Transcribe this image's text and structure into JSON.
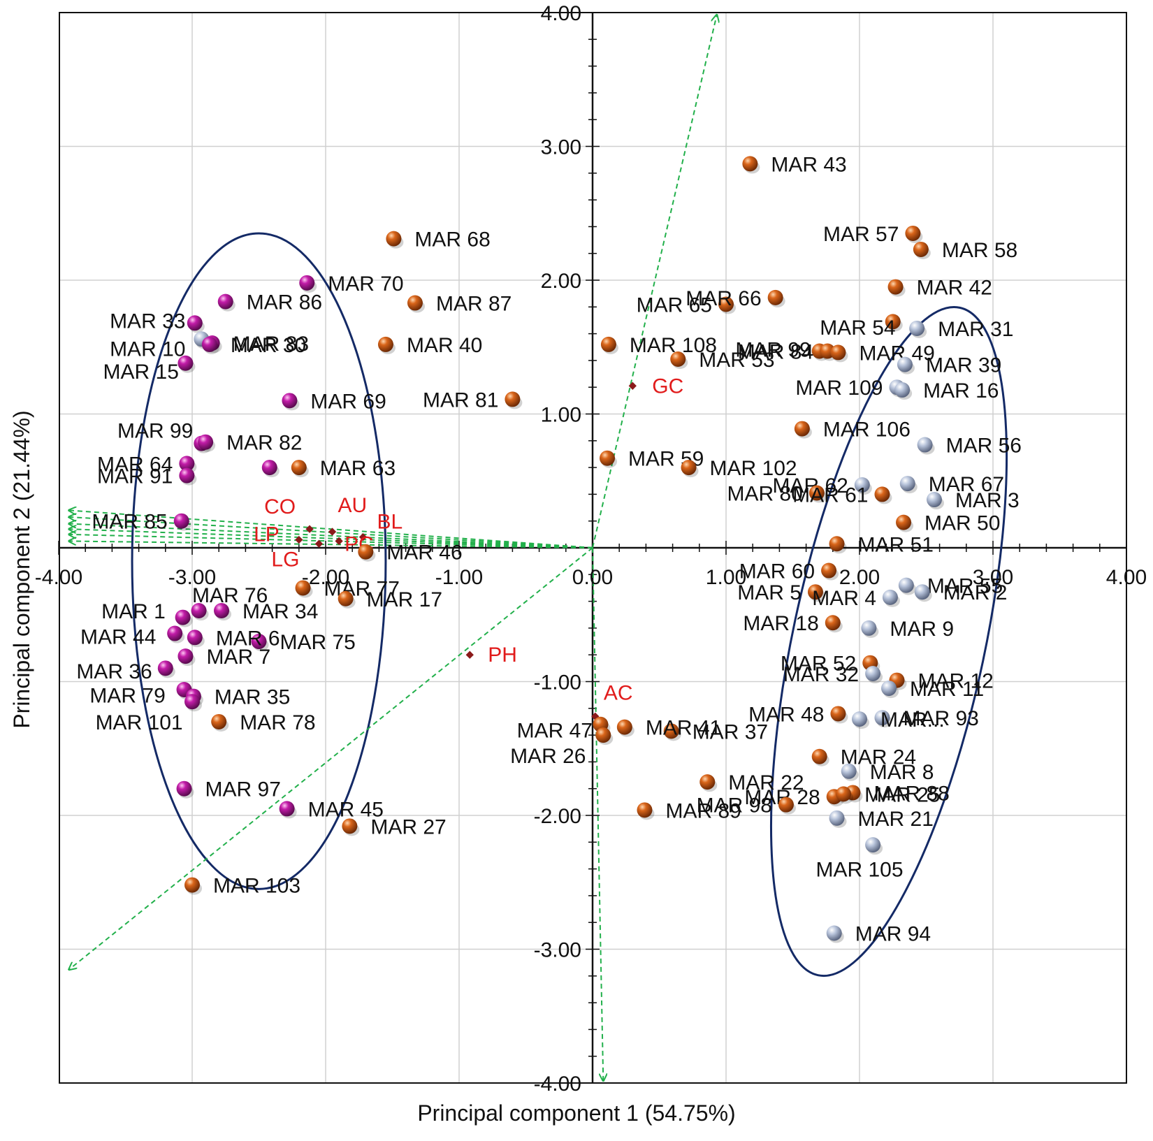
{
  "chart_data": {
    "type": "scatter",
    "title": "",
    "xlabel": "Principal component 1 (54.75%)",
    "ylabel": "Principal component 2 (21.44%)",
    "xlim": [
      -4,
      4
    ],
    "ylim": [
      -4,
      4
    ],
    "xticks": [
      "-4.00",
      "-3.00",
      "-2.00",
      "-1.00",
      "0.00",
      "1.00",
      "2.00",
      "3.00",
      "4.00"
    ],
    "yticks": [
      "-4.00",
      "-3.00",
      "-2.00",
      "-1.00",
      "0.00",
      "1.00",
      "2.00",
      "3.00",
      "4.00"
    ],
    "grid": true,
    "colors": {
      "magenta_group": "#b5179e",
      "orange_group": "#c4520f",
      "grey_group": "#9aa8c4",
      "loading_arrow": "#22b04b",
      "variable_label": "#e11b1b",
      "ellipse": "#142a66"
    },
    "points": [
      {
        "label": "MAR 43",
        "x": 1.18,
        "y": 2.87,
        "group": "orange"
      },
      {
        "label": "MAR 57",
        "x": 2.4,
        "y": 2.35,
        "group": "orange"
      },
      {
        "label": "MAR 58",
        "x": 2.46,
        "y": 2.23,
        "group": "orange"
      },
      {
        "label": "MAR 65",
        "x": 1.0,
        "y": 1.82,
        "group": "orange"
      },
      {
        "label": "MAR 66",
        "x": 1.37,
        "y": 1.87,
        "group": "orange"
      },
      {
        "label": "MAR 42",
        "x": 2.27,
        "y": 1.95,
        "group": "orange"
      },
      {
        "label": "MAR 99",
        "x": 1.7,
        "y": 1.47,
        "group": "orange"
      },
      {
        "label": "MAR 54",
        "x": 2.25,
        "y": 1.69,
        "group": "orange"
      },
      {
        "label": "MAR 31",
        "x": 2.43,
        "y": 1.64,
        "group": "grey"
      },
      {
        "label": "MAR 108",
        "x": 0.12,
        "y": 1.52,
        "group": "orange"
      },
      {
        "label": "MAR 84",
        "x": 1.76,
        "y": 1.47,
        "group": "orange"
      },
      {
        "label": "MAR 49",
        "x": 1.84,
        "y": 1.46,
        "group": "orange"
      },
      {
        "label": "MAR 53",
        "x": 0.64,
        "y": 1.41,
        "group": "orange"
      },
      {
        "label": "MAR 39",
        "x": 2.34,
        "y": 1.37,
        "group": "grey"
      },
      {
        "label": "MAR 109",
        "x": 2.28,
        "y": 1.2,
        "group": "grey"
      },
      {
        "label": "MAR 16",
        "x": 2.32,
        "y": 1.18,
        "group": "grey"
      },
      {
        "label": "MAR 81",
        "x": -0.6,
        "y": 1.11,
        "group": "orange"
      },
      {
        "label": "MAR 106",
        "x": 1.57,
        "y": 0.89,
        "group": "orange"
      },
      {
        "label": "MAR 56",
        "x": 2.49,
        "y": 0.77,
        "group": "grey"
      },
      {
        "label": "MAR 59",
        "x": 0.11,
        "y": 0.67,
        "group": "orange"
      },
      {
        "label": "MAR 102",
        "x": 0.72,
        "y": 0.6,
        "group": "orange"
      },
      {
        "label": "MAR 62",
        "x": 2.02,
        "y": 0.47,
        "group": "grey"
      },
      {
        "label": "MAR 67",
        "x": 2.36,
        "y": 0.48,
        "group": "grey"
      },
      {
        "label": "MAR 80",
        "x": 1.68,
        "y": 0.41,
        "group": "orange"
      },
      {
        "label": "MAR 61",
        "x": 2.17,
        "y": 0.4,
        "group": "orange"
      },
      {
        "label": "MAR 3",
        "x": 2.56,
        "y": 0.36,
        "group": "grey"
      },
      {
        "label": "MAR 50",
        "x": 2.33,
        "y": 0.19,
        "group": "orange"
      },
      {
        "label": "MAR 51",
        "x": 1.83,
        "y": 0.03,
        "group": "orange"
      },
      {
        "label": "MAR 60",
        "x": 1.77,
        "y": -0.17,
        "group": "orange"
      },
      {
        "label": "MAR 55",
        "x": 2.35,
        "y": -0.28,
        "group": "grey"
      },
      {
        "label": "MAR 5",
        "x": 1.67,
        "y": -0.33,
        "group": "orange"
      },
      {
        "label": "MAR 4",
        "x": 2.23,
        "y": -0.37,
        "group": "grey"
      },
      {
        "label": "MAR 2",
        "x": 2.47,
        "y": -0.33,
        "group": "grey"
      },
      {
        "label": "MAR 18",
        "x": 1.8,
        "y": -0.56,
        "group": "orange"
      },
      {
        "label": "MAR 9",
        "x": 2.07,
        "y": -0.6,
        "group": "grey"
      },
      {
        "label": "MAR 52",
        "x": 2.08,
        "y": -0.86,
        "group": "orange"
      },
      {
        "label": "MAR 12",
        "x": 2.28,
        "y": -0.99,
        "group": "orange"
      },
      {
        "label": "MAR 32",
        "x": 2.1,
        "y": -0.94,
        "group": "grey"
      },
      {
        "label": "MAR 11",
        "x": 2.22,
        "y": -1.05,
        "group": "grey"
      },
      {
        "label": "MAR 48",
        "x": 1.84,
        "y": -1.24,
        "group": "orange"
      },
      {
        "label": "MAR 93",
        "x": 2.17,
        "y": -1.27,
        "group": "grey"
      },
      {
        "label": "MAR...",
        "x": 2.0,
        "y": -1.28,
        "group": "grey"
      },
      {
        "label": "MAR 37",
        "x": 0.59,
        "y": -1.37,
        "group": "orange"
      },
      {
        "label": "MAR 47",
        "x": 0.06,
        "y": -1.32,
        "group": "orange"
      },
      {
        "label": "MAR 26",
        "x": 0.08,
        "y": -1.4,
        "group": "orange"
      },
      {
        "label": "MAR 41",
        "x": 0.24,
        "y": -1.34,
        "group": "orange"
      },
      {
        "label": "MAR 24",
        "x": 1.7,
        "y": -1.56,
        "group": "orange"
      },
      {
        "label": "MAR 8",
        "x": 1.92,
        "y": -1.67,
        "group": "grey"
      },
      {
        "label": "MAR 22",
        "x": 0.86,
        "y": -1.75,
        "group": "orange"
      },
      {
        "label": "MAR 88",
        "x": 1.95,
        "y": -1.83,
        "group": "orange"
      },
      {
        "label": "MAR 28",
        "x": 1.81,
        "y": -1.86,
        "group": "orange"
      },
      {
        "label": "MAR 25",
        "x": 1.88,
        "y": -1.84,
        "group": "orange"
      },
      {
        "label": "MAR 89",
        "x": 0.39,
        "y": -1.96,
        "group": "orange"
      },
      {
        "label": "MAR 98",
        "x": 1.45,
        "y": -1.92,
        "group": "orange"
      },
      {
        "label": "MAR 21",
        "x": 1.83,
        "y": -2.02,
        "group": "grey"
      },
      {
        "label": "MAR 105",
        "x": 2.1,
        "y": -2.22,
        "group": "grey"
      },
      {
        "label": "MAR 94",
        "x": 1.81,
        "y": -2.88,
        "group": "grey"
      },
      {
        "label": "MAR 68",
        "x": -1.49,
        "y": 2.31,
        "group": "orange"
      },
      {
        "label": "MAR 70",
        "x": -2.14,
        "y": 1.98,
        "group": "magenta"
      },
      {
        "label": "MAR 87",
        "x": -1.33,
        "y": 1.83,
        "group": "orange"
      },
      {
        "label": "MAR 86",
        "x": -2.75,
        "y": 1.84,
        "group": "magenta"
      },
      {
        "label": "MAR 33",
        "x": -2.98,
        "y": 1.68,
        "group": "magenta"
      },
      {
        "label": "MAR 10",
        "x": -2.93,
        "y": 1.56,
        "group": "grey"
      },
      {
        "label": "MAR 83",
        "x": -2.85,
        "y": 1.53,
        "group": "magenta"
      },
      {
        "label": "MAR 40",
        "x": -1.55,
        "y": 1.52,
        "group": "orange"
      },
      {
        "label": "MAR 15",
        "x": -3.05,
        "y": 1.38,
        "group": "magenta"
      },
      {
        "label": "MAR 30",
        "x": -2.87,
        "y": 1.52,
        "group": "magenta"
      },
      {
        "label": "MAR 69",
        "x": -2.27,
        "y": 1.1,
        "group": "magenta"
      },
      {
        "label": "MAR 99",
        "x": -2.93,
        "y": 0.78,
        "group": "magenta"
      },
      {
        "label": "MAR 82",
        "x": -2.9,
        "y": 0.79,
        "group": "magenta"
      },
      {
        "label": "MAR 64",
        "x": -3.04,
        "y": 0.63,
        "group": "magenta"
      },
      {
        "label": "MAR 91",
        "x": -3.04,
        "y": 0.54,
        "group": "magenta"
      },
      {
        "label": "MAR 63",
        "x": -2.2,
        "y": 0.6,
        "group": "orange"
      },
      {
        "label": "MAR 63b",
        "x": -2.42,
        "y": 0.6,
        "group": "magenta",
        "unlabeled": true
      },
      {
        "label": "MAR 85",
        "x": -3.08,
        "y": 0.2,
        "group": "magenta"
      },
      {
        "label": "MAR 46",
        "x": -1.7,
        "y": -0.03,
        "group": "orange"
      },
      {
        "label": "MAR 77",
        "x": -2.17,
        "y": -0.3,
        "group": "orange"
      },
      {
        "label": "MAR 17",
        "x": -1.85,
        "y": -0.38,
        "group": "orange"
      },
      {
        "label": "MAR 76",
        "x": -2.95,
        "y": -0.47,
        "group": "magenta"
      },
      {
        "label": "MAR 34",
        "x": -2.78,
        "y": -0.47,
        "group": "magenta"
      },
      {
        "label": "MAR 1",
        "x": -3.07,
        "y": -0.52,
        "group": "magenta"
      },
      {
        "label": "MAR 44",
        "x": -3.13,
        "y": -0.64,
        "group": "magenta"
      },
      {
        "label": "MAR 75",
        "x": -2.5,
        "y": -0.7,
        "group": "magenta"
      },
      {
        "label": "MAR 6",
        "x": -2.98,
        "y": -0.67,
        "group": "magenta"
      },
      {
        "label": "MAR 7",
        "x": -3.05,
        "y": -0.81,
        "group": "magenta"
      },
      {
        "label": "MAR 36",
        "x": -3.2,
        "y": -0.9,
        "group": "magenta"
      },
      {
        "label": "MAR 79",
        "x": -3.06,
        "y": -1.06,
        "group": "magenta"
      },
      {
        "label": "MAR 35",
        "x": -2.99,
        "y": -1.11,
        "group": "magenta"
      },
      {
        "label": "MAR 101",
        "x": -3.0,
        "y": -1.15,
        "group": "magenta"
      },
      {
        "label": "MAR 78",
        "x": -2.8,
        "y": -1.3,
        "group": "orange"
      },
      {
        "label": "MAR 97",
        "x": -3.06,
        "y": -1.8,
        "group": "magenta"
      },
      {
        "label": "MAR 45",
        "x": -2.29,
        "y": -1.95,
        "group": "magenta"
      },
      {
        "label": "MAR 27",
        "x": -1.82,
        "y": -2.08,
        "group": "orange"
      },
      {
        "label": "MAR 103",
        "x": -3.0,
        "y": -2.52,
        "group": "orange"
      }
    ],
    "variables": [
      {
        "label": "GC",
        "x": 0.3,
        "y": 1.21,
        "arrow_to": [
          0.93,
          3.98
        ]
      },
      {
        "label": "PH",
        "x": -0.92,
        "y": -0.8,
        "arrow_to": [
          -3.92,
          -3.15
        ]
      },
      {
        "label": "AC",
        "x": 0.02,
        "y": -1.26,
        "arrow_to": [
          0.08,
          -3.98
        ]
      },
      {
        "label": "CO",
        "x": -2.12,
        "y": 0.14,
        "arrow_to": [
          -3.92,
          0.28
        ]
      },
      {
        "label": "AU",
        "x": -1.95,
        "y": 0.12,
        "arrow_to": [
          -3.92,
          0.23
        ]
      },
      {
        "label": "BL",
        "x": -1.72,
        "y": 0.08,
        "arrow_to": [
          -3.92,
          0.18
        ]
      },
      {
        "label": "LP",
        "x": -2.2,
        "y": 0.06,
        "arrow_to": [
          -3.92,
          0.14
        ]
      },
      {
        "label": "PC",
        "x": -1.9,
        "y": 0.05,
        "arrow_to": [
          -3.92,
          0.1
        ]
      },
      {
        "label": "LG",
        "x": -2.05,
        "y": 0.03,
        "arrow_to": [
          -3.92,
          0.05
        ]
      }
    ],
    "ellipses": [
      {
        "group": "left",
        "cx": -2.5,
        "cy": -0.1,
        "rx": 0.95,
        "ry": 2.45,
        "angle_deg": 0
      },
      {
        "group": "right",
        "cx": 2.22,
        "cy": -0.7,
        "rx": 0.72,
        "ry": 2.55,
        "angle_deg": 12
      }
    ]
  }
}
